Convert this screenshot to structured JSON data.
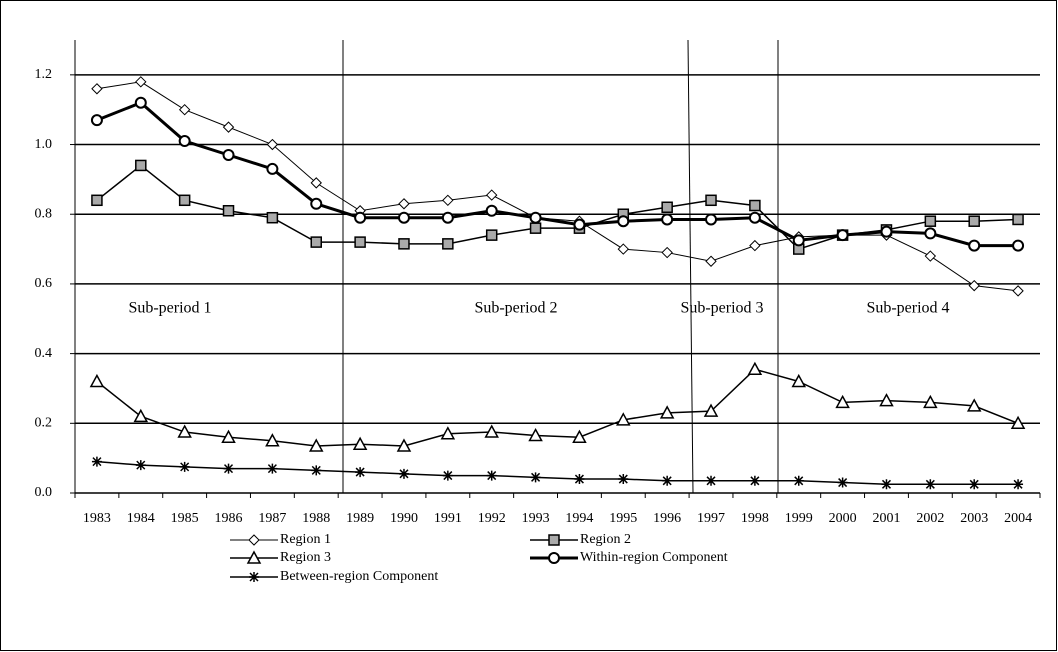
{
  "chart_data": {
    "type": "line",
    "categories": [
      "1983",
      "1984",
      "1985",
      "1986",
      "1987",
      "1988",
      "1989",
      "1990",
      "1991",
      "1992",
      "1993",
      "1994",
      "1995",
      "1996",
      "1997",
      "1998",
      "1999",
      "2000",
      "2001",
      "2002",
      "2003",
      "2004"
    ],
    "series": [
      {
        "name": "Region 1",
        "color": "#000000",
        "marker": "diamond",
        "line_width": 1,
        "values": [
          1.16,
          1.18,
          1.1,
          1.05,
          1.0,
          0.89,
          0.81,
          0.83,
          0.84,
          0.855,
          0.79,
          0.78,
          0.7,
          0.69,
          0.665,
          0.71,
          0.735,
          0.74,
          0.74,
          0.68,
          0.595,
          0.58
        ]
      },
      {
        "name": "Region 2",
        "color": "#000000",
        "marker": "square",
        "line_width": 1.5,
        "values": [
          0.84,
          0.94,
          0.84,
          0.81,
          0.79,
          0.72,
          0.72,
          0.715,
          0.715,
          0.74,
          0.76,
          0.76,
          0.8,
          0.82,
          0.84,
          0.825,
          0.7,
          0.74,
          0.755,
          0.78,
          0.78,
          0.785
        ]
      },
      {
        "name": "Region 3",
        "color": "#000000",
        "marker": "triangle",
        "line_width": 1.5,
        "values": [
          0.32,
          0.22,
          0.175,
          0.16,
          0.15,
          0.135,
          0.14,
          0.135,
          0.17,
          0.175,
          0.165,
          0.16,
          0.21,
          0.23,
          0.235,
          0.355,
          0.32,
          0.26,
          0.265,
          0.26,
          0.25,
          0.2
        ]
      },
      {
        "name": "Within-region Component",
        "color": "#000000",
        "marker": "circle",
        "line_width": 3,
        "values": [
          1.07,
          1.12,
          1.01,
          0.97,
          0.93,
          0.83,
          0.79,
          0.79,
          0.79,
          0.81,
          0.79,
          0.77,
          0.78,
          0.785,
          0.785,
          0.79,
          0.725,
          0.74,
          0.75,
          0.745,
          0.71,
          0.71
        ]
      },
      {
        "name": "Between-region Component",
        "color": "#000000",
        "marker": "asterisk",
        "line_width": 1.5,
        "values": [
          0.09,
          0.08,
          0.075,
          0.07,
          0.07,
          0.065,
          0.06,
          0.055,
          0.05,
          0.05,
          0.045,
          0.04,
          0.04,
          0.035,
          0.035,
          0.035,
          0.035,
          0.03,
          0.025,
          0.025,
          0.025,
          0.025
        ]
      }
    ],
    "annotations": [
      "Sub-period 1",
      "Sub-period 2",
      "Sub-period 3",
      "Sub-period 4"
    ],
    "ylim": [
      0,
      1.3
    ],
    "yticks": [
      {
        "value": 0,
        "label": "0.0"
      },
      0.2,
      0.4,
      0.6,
      0.8,
      {
        "value": 1,
        "label": "1.0"
      },
      1.2
    ],
    "grid": true
  }
}
